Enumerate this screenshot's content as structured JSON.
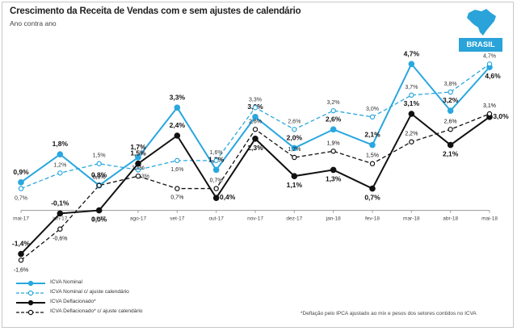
{
  "title": "Crescimento da Receita de Vendas com e sem ajustes de calendário",
  "subtitle": "Ano contra ano",
  "badge": "BRASIL",
  "footnote": "*Deflação pelo IPCA ajustado ao mix e pesos dos setores contidos no ICVA",
  "colors": {
    "nominal": "#2aa7df",
    "deflated": "#111111",
    "axis": "#999999",
    "badge": "#29a3d9"
  },
  "icons": {
    "logo": "brazil-map-icon"
  },
  "chart_data": {
    "type": "line",
    "title": "Crescimento da Receita de Vendas com e sem ajustes de calendário",
    "subtitle": "Ano contra ano",
    "categories": [
      "mai-17",
      "jun-17",
      "jul-17",
      "ago-17",
      "set-17",
      "out-17",
      "nov-17",
      "dez-17",
      "jan-18",
      "fev-18",
      "mar-18",
      "abr-18",
      "mai-18"
    ],
    "ylim": [
      -1.8,
      5.2
    ],
    "grid": false,
    "legend_position": "bottom-left",
    "series": [
      {
        "name": "ICVA Nominal",
        "style": "solid",
        "color": "#2aa7df",
        "marker": "filled",
        "values": [
          0.9,
          1.8,
          0.8,
          1.7,
          3.3,
          1.3,
          3.0,
          2.0,
          2.6,
          2.1,
          4.7,
          3.2,
          4.6
        ],
        "labels": [
          "0,9%",
          "1,8%",
          "0,8%",
          "1,7%",
          "3,3%",
          "1,3%",
          "3,0%",
          "2,0%",
          "2,6%",
          "2,1%",
          "4,7%",
          "3,2%",
          "4,6%"
        ]
      },
      {
        "name": "ICVA Nominal c/ ajuste calendário",
        "style": "dashed",
        "color": "#2aa7df",
        "marker": "open",
        "values": [
          0.7,
          1.2,
          1.5,
          1.3,
          1.6,
          1.6,
          3.3,
          2.6,
          3.2,
          3.0,
          3.7,
          3.8,
          4.7
        ],
        "labels": [
          "0,7%",
          "1,2%",
          "1,5%",
          "1,3%",
          "1,6%",
          "1,6%",
          "3,3%",
          "2,6%",
          "3,2%",
          "3,0%",
          "3,7%",
          "3,8%",
          "4,7%"
        ]
      },
      {
        "name": "ICVA Deflacionado*",
        "style": "solid",
        "color": "#111111",
        "marker": "filled",
        "values": [
          -1.4,
          -0.1,
          0.0,
          1.5,
          2.4,
          0.4,
          2.3,
          1.1,
          1.3,
          0.7,
          3.1,
          2.1,
          3.0
        ],
        "labels": [
          "-1,4%",
          "-0,1%",
          "0,0%",
          "1,5%",
          "2,4%",
          "0,4%",
          "2,3%",
          "1,1%",
          "1,3%",
          "0,7%",
          "3,1%",
          "2,1%",
          "3,0%"
        ]
      },
      {
        "name": "ICVA Deflacionado* c/ ajuste calendário",
        "style": "dashed",
        "color": "#111111",
        "marker": "open",
        "values": [
          -1.6,
          -0.6,
          0.8,
          1.1,
          0.7,
          0.7,
          2.6,
          1.7,
          1.9,
          1.5,
          2.2,
          2.6,
          3.1
        ],
        "labels": [
          "-1,6%",
          "-0,6%",
          "0,8%",
          "1,1%",
          "0,7%",
          "0,7%",
          "2,6%",
          "1,7%",
          "1,9%",
          "1,5%",
          "2,2%",
          "2,6%",
          "3,1%"
        ]
      }
    ]
  }
}
